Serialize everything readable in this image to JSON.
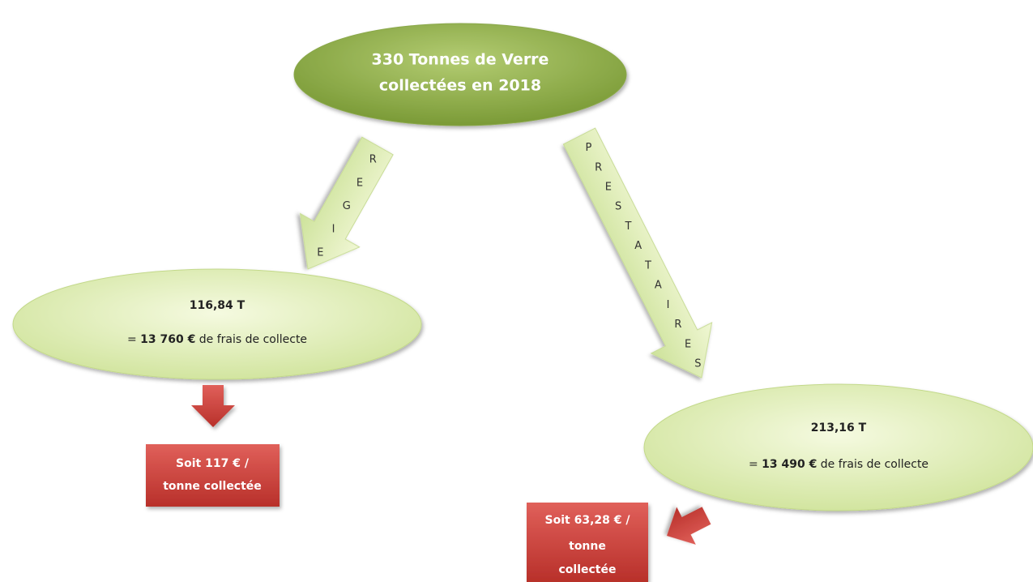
{
  "top_node": {
    "lines": [
      "330 Tonnes de Verre",
      "collectées en 2018"
    ]
  },
  "branches": [
    {
      "arrow_letters": [
        "R",
        "E",
        "G",
        "I",
        "E"
      ],
      "node": {
        "tonnage": "116,84 T",
        "cost": {
          "prefix": "= ",
          "amount": "13 760 €",
          "suffix": " de frais de collecte"
        }
      },
      "result": {
        "lines": [
          "Soit 117 € /",
          "tonne collectée"
        ]
      }
    },
    {
      "arrow_letters": [
        "P",
        "R",
        "E",
        "S",
        "T",
        "A",
        "T",
        "A",
        "I",
        "R",
        "E",
        "S"
      ],
      "node": {
        "tonnage": "213,16 T",
        "cost": {
          "prefix": "= ",
          "amount": "13 490 €",
          "suffix": " de frais de collecte"
        }
      },
      "result": {
        "lines": [
          "Soit 63,28 € /",
          "tonne",
          "collectée"
        ]
      }
    }
  ]
}
